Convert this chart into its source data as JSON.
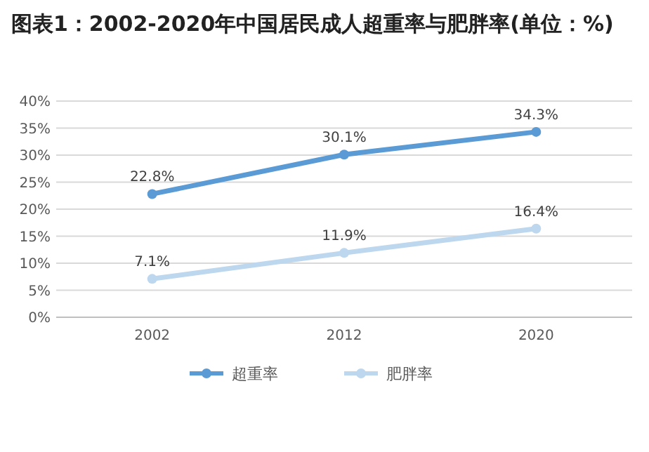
{
  "chart_data": {
    "type": "line",
    "title": "图表1：2002-2020年中国居民成人超重率与肥胖率(单位：%)",
    "categories": [
      "2002",
      "2012",
      "2020"
    ],
    "series": [
      {
        "name": "超重率",
        "color": "#5b9bd5",
        "values": [
          22.8,
          30.1,
          34.3
        ],
        "value_labels": [
          "22.8%",
          "30.1%",
          "34.3%"
        ]
      },
      {
        "name": "肥胖率",
        "color": "#bdd7ee",
        "values": [
          7.1,
          11.9,
          16.4
        ],
        "value_labels": [
          "7.1%",
          "11.9%",
          "16.4%"
        ]
      }
    ],
    "ylim": [
      0,
      40
    ],
    "yticks": [
      {
        "value": 0,
        "label": "0%"
      },
      {
        "value": 5,
        "label": "5%"
      },
      {
        "value": 10,
        "label": "10%"
      },
      {
        "value": 15,
        "label": "15%"
      },
      {
        "value": 20,
        "label": "20%"
      },
      {
        "value": 25,
        "label": "25%"
      },
      {
        "value": 30,
        "label": "30%"
      },
      {
        "value": 35,
        "label": "35%"
      },
      {
        "value": 40,
        "label": "40%"
      }
    ],
    "grid": "y",
    "legend": "bottom",
    "marker": "circle",
    "line_style": "solid"
  }
}
